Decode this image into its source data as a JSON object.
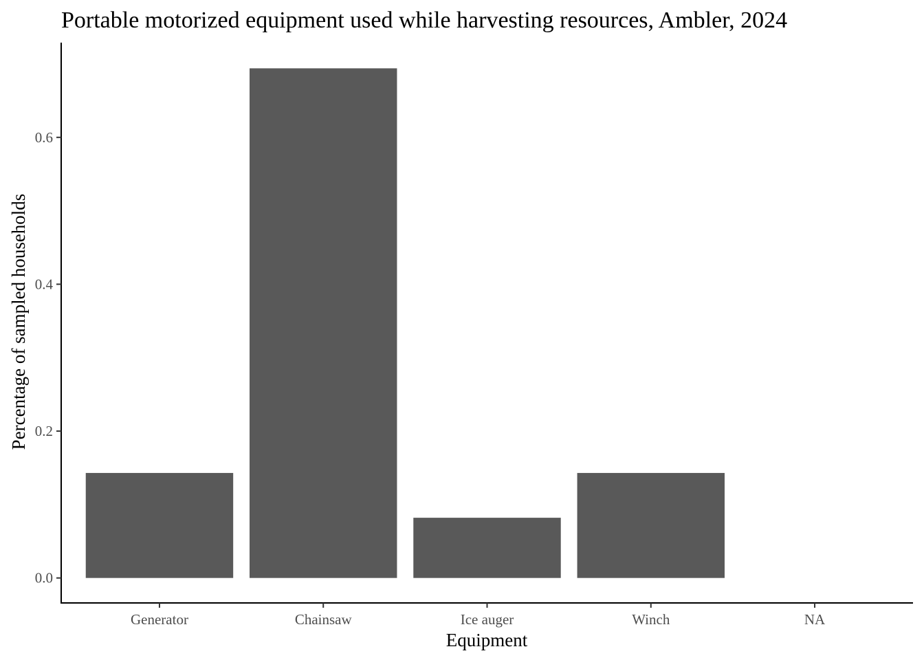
{
  "chart_data": {
    "type": "bar",
    "title": "Portable motorized equipment used while harvesting resources, Ambler, 2024",
    "xlabel": "Equipment",
    "ylabel": "Percentage of sampled households",
    "categories": [
      "Generator",
      "Chainsaw",
      "Ice auger",
      "Winch",
      "NA"
    ],
    "values": [
      0.143,
      0.694,
      0.082,
      0.143,
      0
    ],
    "ylim": [
      -0.034,
      0.729
    ],
    "yticks": [
      0.0,
      0.2,
      0.4,
      0.6
    ],
    "ytick_labels": [
      "0.0",
      "0.2",
      "0.4",
      "0.6"
    ],
    "bar_color": "#595959",
    "grid": false,
    "legend": "none"
  }
}
